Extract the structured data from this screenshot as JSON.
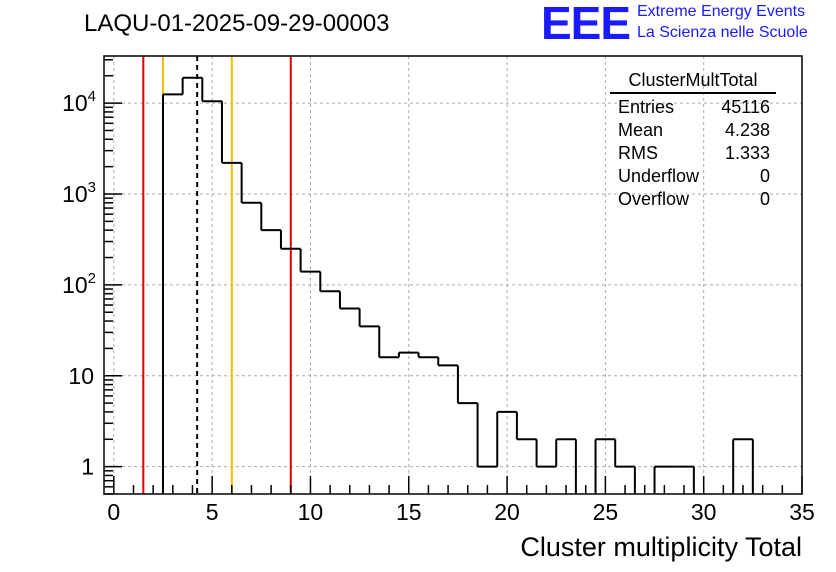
{
  "title": "LAQU-01-2025-09-29-00003",
  "logo": {
    "mark": "EEE",
    "line1": "Extreme Energy Events",
    "line2": "La Scienza nelle Scuole",
    "color": "#1a1aff"
  },
  "stats": {
    "title": "ClusterMultTotal",
    "rows": [
      {
        "label": "Entries",
        "value": "45116"
      },
      {
        "label": "Mean",
        "value": "4.238"
      },
      {
        "label": "RMS",
        "value": "1.333"
      },
      {
        "label": "Underflow",
        "value": "0"
      },
      {
        "label": "Overflow",
        "value": "0"
      }
    ]
  },
  "chart_data": {
    "type": "histogram",
    "title": "LAQU-01-2025-09-29-00003",
    "xlabel": "Cluster multiplicity Total",
    "ylabel": "",
    "y_scale": "log",
    "xlim": [
      -0.5,
      35
    ],
    "ylim": [
      0.5,
      33000
    ],
    "x_ticks": [
      0,
      5,
      10,
      15,
      20,
      25,
      30,
      35
    ],
    "x_tick_labels": [
      "0",
      "5",
      "10",
      "15",
      "20",
      "25",
      "30",
      "35"
    ],
    "y_ticks": [
      1,
      10,
      100,
      1000,
      10000
    ],
    "y_tick_labels": [
      "1",
      "10",
      "10^2",
      "10^3",
      "10^4"
    ],
    "grid": true,
    "bin_width": 1,
    "bins_start": -0.5,
    "counts": [
      0,
      0,
      0,
      12500,
      19000,
      10500,
      2200,
      800,
      400,
      250,
      140,
      85,
      55,
      35,
      16,
      18,
      16,
      13,
      5,
      1,
      4,
      2,
      1,
      2,
      0,
      2,
      1,
      0,
      1,
      1,
      0,
      0,
      2,
      0,
      0
    ],
    "vertical_lines": [
      {
        "x": 1.5,
        "color": "#e00000",
        "style": "solid"
      },
      {
        "x": 2.5,
        "color": "#f0c000",
        "style": "solid"
      },
      {
        "x": 4.238,
        "color": "#000000",
        "style": "dashed"
      },
      {
        "x": 6.0,
        "color": "#f0c000",
        "style": "solid"
      },
      {
        "x": 9.0,
        "color": "#e00000",
        "style": "solid"
      }
    ]
  }
}
